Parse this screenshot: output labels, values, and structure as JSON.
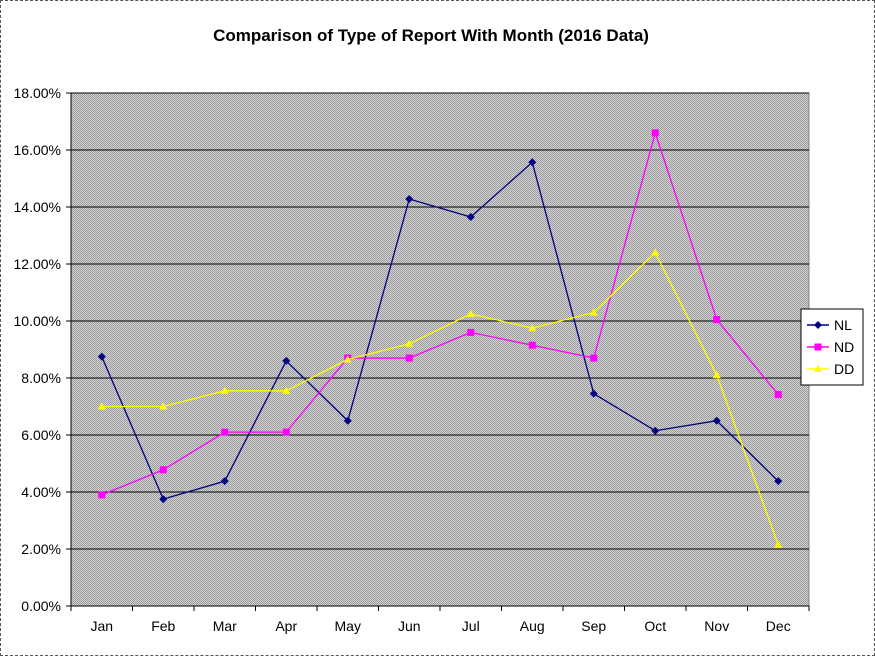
{
  "chart_data": {
    "type": "line",
    "title": "Comparison of Type of Report With Month (2016 Data)",
    "xlabel": "",
    "ylabel": "",
    "categories": [
      "Jan",
      "Feb",
      "Mar",
      "Apr",
      "May",
      "Jun",
      "Jul",
      "Aug",
      "Sep",
      "Oct",
      "Nov",
      "Dec"
    ],
    "ylim": [
      0,
      18
    ],
    "ytick_step": 2,
    "ytick_format": "percent_2dp",
    "grid": true,
    "plot_background": "#c0c0c0",
    "legend_position": "right",
    "series": [
      {
        "name": "NL",
        "color": "#000080",
        "marker": "diamond",
        "values": [
          8.75,
          3.75,
          4.38,
          8.6,
          6.5,
          14.28,
          13.65,
          15.57,
          7.45,
          6.15,
          6.5,
          4.38
        ]
      },
      {
        "name": "ND",
        "color": "#ff00ff",
        "marker": "square",
        "values": [
          3.9,
          4.78,
          6.1,
          6.1,
          8.7,
          8.7,
          9.6,
          9.15,
          8.7,
          16.6,
          10.05,
          7.42
        ]
      },
      {
        "name": "DD",
        "color": "#ffff00",
        "marker": "triangle",
        "values": [
          7.0,
          7.0,
          7.55,
          7.55,
          8.65,
          9.2,
          10.25,
          9.75,
          10.3,
          12.4,
          8.1,
          2.15
        ]
      }
    ]
  }
}
